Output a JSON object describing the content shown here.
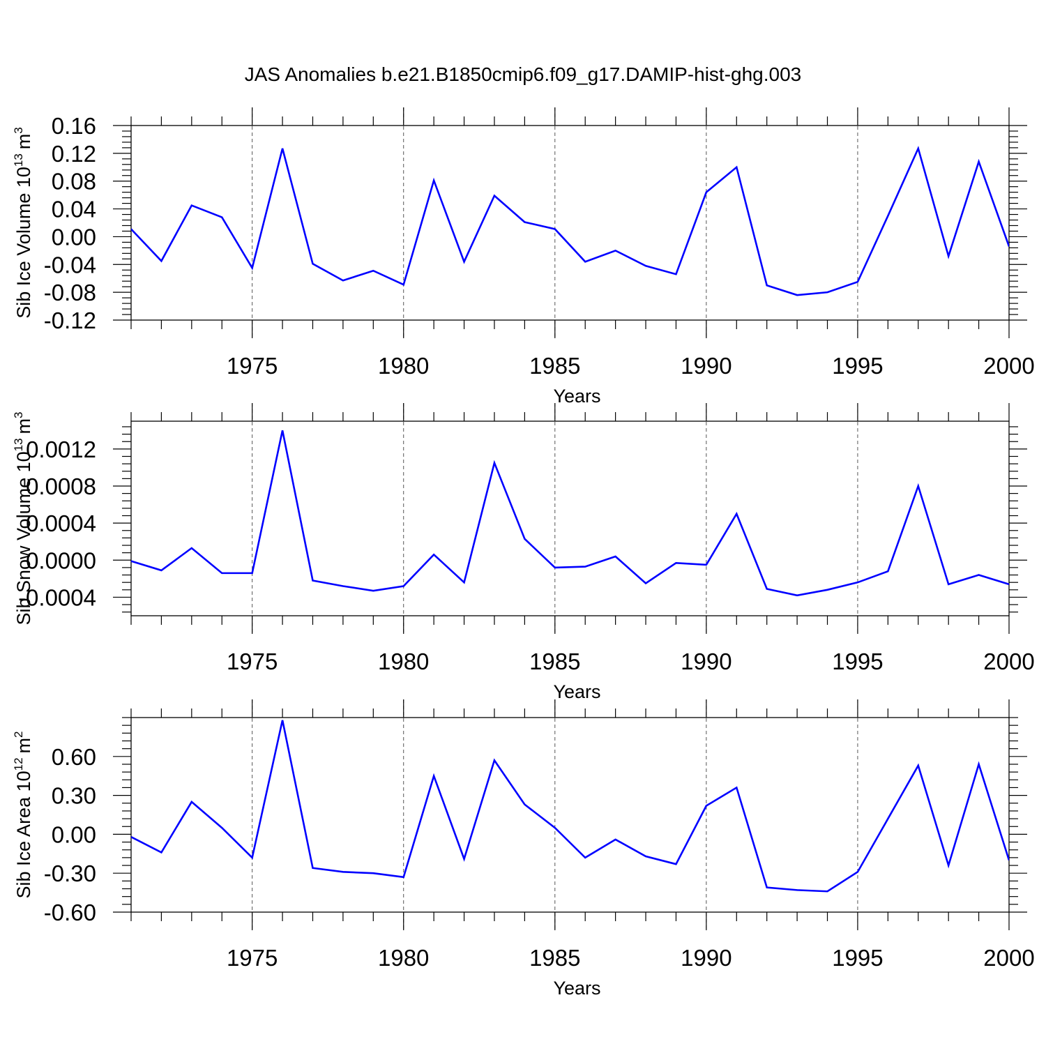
{
  "figure_title": "JAS Anomalies b.e21.B1850cmip6.f09_g17.DAMIP-hist-ghg.003",
  "colors": {
    "line": "#0000ff",
    "frame": "#000000",
    "grid": "#555555"
  },
  "chart_data": [
    {
      "type": "line",
      "ylabel": "Sib Ice Volume 10",
      "ylabel_exponent": "13",
      "ylabel_unit": "m",
      "ylabel_unit_exponent": "3",
      "xlabel": "Years",
      "xlim": [
        1971,
        2000
      ],
      "ylim": [
        -0.12,
        0.16
      ],
      "yticks": [
        -0.12,
        -0.08,
        -0.04,
        0.0,
        0.04,
        0.08,
        0.12,
        0.16
      ],
      "ytick_labels": [
        "-0.12",
        "-0.08",
        "-0.04",
        "0.00",
        "0.04",
        "0.08",
        "0.12",
        "0.16"
      ],
      "xticks": [
        1975,
        1980,
        1985,
        1990,
        1995,
        2000
      ],
      "xtick_labels": [
        "1975",
        "1980",
        "1985",
        "1990",
        "1995",
        "2000"
      ],
      "grid": "dashed vertical lines at x tick labels",
      "x": [
        1971,
        1972,
        1973,
        1974,
        1975,
        1976,
        1977,
        1978,
        1979,
        1980,
        1981,
        1982,
        1983,
        1984,
        1985,
        1986,
        1987,
        1988,
        1989,
        1990,
        1991,
        1992,
        1993,
        1994,
        1995,
        1996,
        1997,
        1998,
        1999,
        2000
      ],
      "series": [
        {
          "values": [
            0.011,
            -0.035,
            0.045,
            0.028,
            -0.045,
            0.127,
            -0.039,
            -0.063,
            -0.049,
            -0.069,
            0.081,
            -0.036,
            0.059,
            0.021,
            0.011,
            -0.036,
            -0.02,
            -0.042,
            -0.054,
            0.064,
            0.1,
            -0.07,
            -0.084,
            -0.08,
            -0.065,
            0.03,
            0.127,
            -0.028,
            0.108,
            -0.014
          ]
        }
      ]
    },
    {
      "type": "line",
      "ylabel": "Sib Snow Volume 10",
      "ylabel_exponent": "13",
      "ylabel_unit": "m",
      "ylabel_unit_exponent": "3",
      "xlabel": "Years",
      "xlim": [
        1971,
        2000
      ],
      "ylim": [
        -0.0006,
        0.0015
      ],
      "yticks": [
        -0.0004,
        0.0,
        0.0004,
        0.0008,
        0.0012
      ],
      "ytick_labels": [
        "-0.0004",
        "0.0000",
        "0.0004",
        "0.0008",
        "0.0012"
      ],
      "xticks": [
        1975,
        1980,
        1985,
        1990,
        1995,
        2000
      ],
      "xtick_labels": [
        "1975",
        "1980",
        "1985",
        "1990",
        "1995",
        "2000"
      ],
      "grid": "dashed vertical lines at x tick labels",
      "x": [
        1971,
        1972,
        1973,
        1974,
        1975,
        1976,
        1977,
        1978,
        1979,
        1980,
        1981,
        1982,
        1983,
        1984,
        1985,
        1986,
        1987,
        1988,
        1989,
        1990,
        1991,
        1992,
        1993,
        1994,
        1995,
        1996,
        1997,
        1998,
        1999,
        2000
      ],
      "series": [
        {
          "values": [
            -1e-05,
            -0.00011,
            0.00013,
            -0.00014,
            -0.00014,
            0.0014,
            -0.00022,
            -0.00028,
            -0.00033,
            -0.00028,
            6e-05,
            -0.00024,
            0.00105,
            0.00023,
            -8e-05,
            -7e-05,
            4e-05,
            -0.00025,
            -3e-05,
            -5e-05,
            0.0005,
            -0.00031,
            -0.00038,
            -0.00032,
            -0.00024,
            -0.00012,
            0.0008,
            -0.00026,
            -0.00016,
            -0.00026
          ]
        }
      ]
    },
    {
      "type": "line",
      "ylabel": "Sib Ice Area 10",
      "ylabel_exponent": "12",
      "ylabel_unit": "m",
      "ylabel_unit_exponent": "2",
      "xlabel": "Years",
      "xlim": [
        1971,
        2000
      ],
      "ylim": [
        -0.6,
        0.9
      ],
      "yticks": [
        -0.6,
        -0.3,
        0.0,
        0.3,
        0.6
      ],
      "ytick_labels": [
        "-0.60",
        "-0.30",
        "0.00",
        "0.30",
        "0.60"
      ],
      "xticks": [
        1975,
        1980,
        1985,
        1990,
        1995,
        2000
      ],
      "xtick_labels": [
        "1975",
        "1980",
        "1985",
        "1990",
        "1995",
        "2000"
      ],
      "grid": "dashed vertical lines at x tick labels",
      "x": [
        1971,
        1972,
        1973,
        1974,
        1975,
        1976,
        1977,
        1978,
        1979,
        1980,
        1981,
        1982,
        1983,
        1984,
        1985,
        1986,
        1987,
        1988,
        1989,
        1990,
        1991,
        1992,
        1993,
        1994,
        1995,
        1996,
        1997,
        1998,
        1999,
        2000
      ],
      "series": [
        {
          "values": [
            -0.02,
            -0.14,
            0.25,
            0.05,
            -0.18,
            0.88,
            -0.26,
            -0.29,
            -0.3,
            -0.33,
            0.45,
            -0.19,
            0.57,
            0.23,
            0.05,
            -0.18,
            -0.04,
            -0.17,
            -0.23,
            0.22,
            0.36,
            -0.41,
            -0.43,
            -0.44,
            -0.29,
            0.12,
            0.53,
            -0.24,
            0.54,
            -0.2
          ]
        }
      ]
    }
  ]
}
